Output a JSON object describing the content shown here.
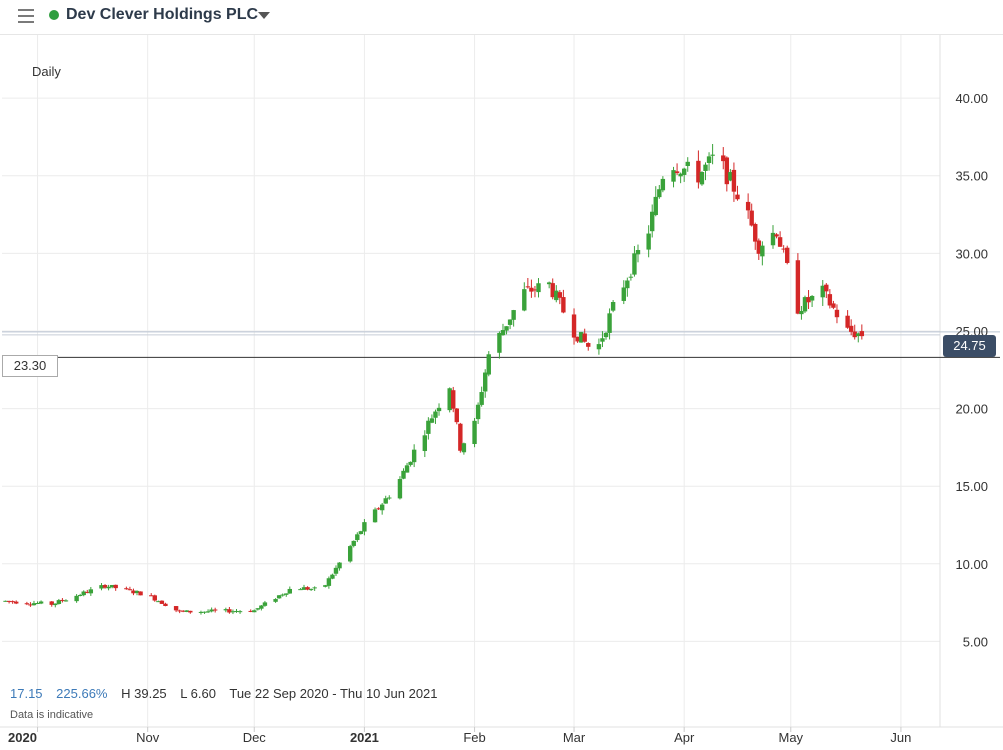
{
  "header": {
    "title": "Dev Clever Holdings PLC",
    "menu_icon": "hamburger-menu-icon",
    "status_dot_color": "#2e9e3f",
    "caret_icon": "caret-down-icon"
  },
  "timeframe": "Daily",
  "stats": {
    "change": "17.15",
    "change_pct": "225.66%",
    "high": "H 39.25",
    "low": "L 6.60",
    "range": "Tue 22 Sep 2020 - Thu 10 Jun 2021"
  },
  "disclaimer": "Data is indicative",
  "price_label": {
    "value": "24.75",
    "color": "#3b4d66"
  },
  "reference_label": "23.30",
  "chart_data": {
    "type": "candlestick",
    "y_tick_labels": [
      "5.00",
      "10.00",
      "15.00",
      "20.00",
      "25.00",
      "30.00",
      "35.00",
      "40.00"
    ],
    "y_ticks": [
      5,
      10,
      15,
      20,
      25,
      30,
      35,
      40
    ],
    "ylim": [
      2.0,
      44.0
    ],
    "x_tick_labels": [
      {
        "label": "2020",
        "bold": true
      },
      {
        "label": "Nov",
        "bold": false
      },
      {
        "label": "Dec",
        "bold": false
      },
      {
        "label": "2021",
        "bold": true
      },
      {
        "label": "Feb",
        "bold": false
      },
      {
        "label": "Mar",
        "bold": false
      },
      {
        "label": "Apr",
        "bold": false
      },
      {
        "label": "May",
        "bold": false
      },
      {
        "label": "Jun",
        "bold": false
      }
    ],
    "x_tick_dates": [
      "2020-10-01",
      "2020-11-01",
      "2020-12-01",
      "2021-01-01",
      "2021-02-01",
      "2021-03-01",
      "2021-04-01",
      "2021-05-01",
      "2021-06-01"
    ],
    "current_price": 24.75,
    "reference_price": 23.3,
    "up_color": "#3aa23a",
    "down_color": "#d42727",
    "grid": true,
    "axis_position": "right",
    "waypoints": [
      [
        "2020-09-22",
        7.6
      ],
      [
        "2020-10-05",
        7.4
      ],
      [
        "2020-10-20",
        8.6
      ],
      [
        "2020-11-01",
        8.0
      ],
      [
        "2020-11-10",
        6.9
      ],
      [
        "2020-12-01",
        7.0
      ],
      [
        "2020-12-12",
        8.5
      ],
      [
        "2020-12-20",
        8.3
      ],
      [
        "2021-01-01",
        12.5
      ],
      [
        "2021-01-10",
        15.0
      ],
      [
        "2021-01-20",
        19.5
      ],
      [
        "2021-01-25",
        21.5
      ],
      [
        "2021-01-28",
        17.5
      ],
      [
        "2021-02-01",
        19.0
      ],
      [
        "2021-02-05",
        23.5
      ],
      [
        "2021-02-15",
        27.5
      ],
      [
        "2021-02-22",
        28.0
      ],
      [
        "2021-03-01",
        25.0
      ],
      [
        "2021-03-07",
        23.5
      ],
      [
        "2021-03-12",
        26.5
      ],
      [
        "2021-03-22",
        31.5
      ],
      [
        "2021-03-27",
        36.0
      ],
      [
        "2021-04-05",
        35.0
      ],
      [
        "2021-04-10",
        36.3
      ],
      [
        "2021-04-18",
        33.0
      ],
      [
        "2021-04-22",
        30.5
      ],
      [
        "2021-04-27",
        31.5
      ],
      [
        "2021-05-03",
        26.5
      ],
      [
        "2021-05-10",
        27.5
      ],
      [
        "2021-05-17",
        25.0
      ],
      [
        "2021-05-21",
        24.75
      ]
    ]
  }
}
